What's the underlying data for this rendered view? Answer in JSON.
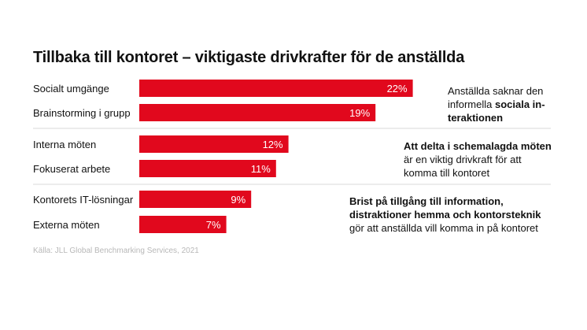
{
  "title": "Tillbaka till kontoret – viktigaste drivkrafter för de anställda",
  "source": "Källa: JLL Global Benchmarking Services, 2021",
  "colors": {
    "bar": "#e1081d",
    "divider": "#d9d9d9",
    "bar_label": "#ffffff"
  },
  "chart_data": {
    "type": "bar",
    "orientation": "horizontal",
    "categories": [
      "Socialt umgänge",
      "Brainstorming i grupp",
      "Interna möten",
      "Fokuserat arbete",
      "Kontorets IT-lösningar",
      "Externa möten"
    ],
    "values": [
      22,
      19,
      12,
      11,
      9,
      7
    ],
    "value_labels": [
      "22%",
      "19%",
      "12%",
      "11%",
      "9%",
      "7%"
    ],
    "unit": "%",
    "groups": [
      {
        "rows": [
          0,
          1
        ]
      },
      {
        "rows": [
          2,
          3
        ]
      },
      {
        "rows": [
          4,
          5
        ]
      }
    ],
    "grid": false,
    "legend": "none"
  },
  "annotations": [
    {
      "parts": [
        {
          "text": "Anställda saknar den informella ",
          "bold": false
        },
        {
          "text": "sociala in-teraktionen",
          "bold": true
        }
      ]
    },
    {
      "parts": [
        {
          "text": "Att delta i schemalagda möten",
          "bold": true
        },
        {
          "text": " är en viktig drivkraft för att komma till kontoret",
          "bold": false
        }
      ]
    },
    {
      "parts": [
        {
          "text": "Brist på tillgång till information, distraktioner hemma och kontorsteknik",
          "bold": true
        },
        {
          "text": " gör att anställda vill komma in på kontoret",
          "bold": false
        }
      ]
    }
  ]
}
